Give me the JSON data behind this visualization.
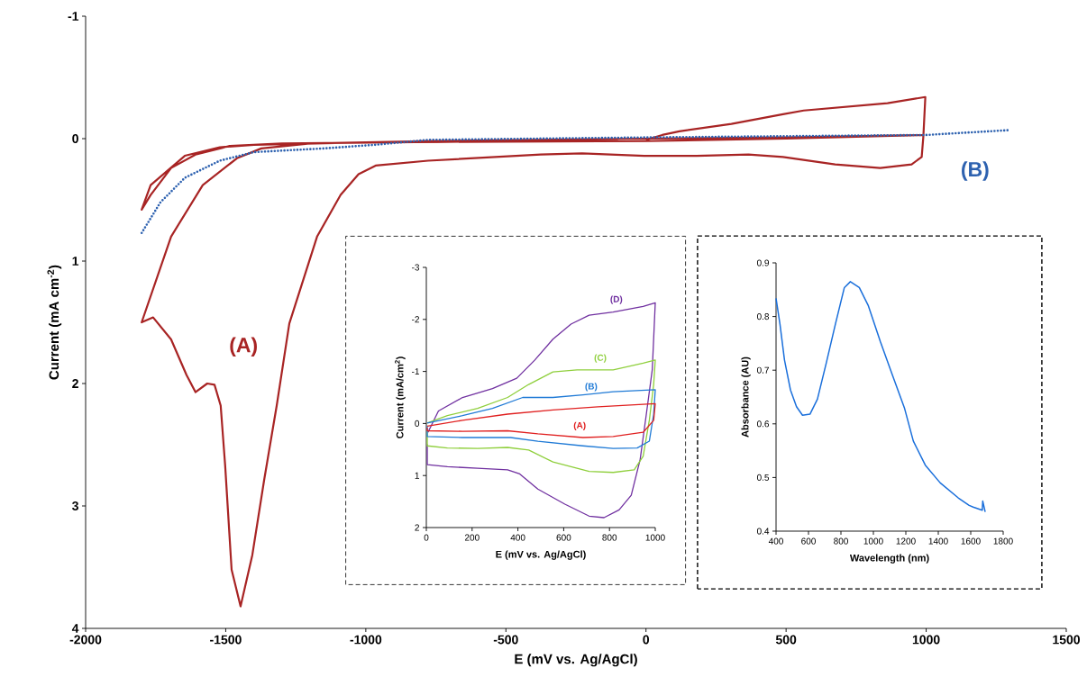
{
  "chart_data": [
    {
      "type": "line",
      "xlabel": "E (mV vs. Ag/AgCl)",
      "ylabel": "Current (mA cm$^{-2}$)",
      "xlim": [
        -2000,
        1500
      ],
      "ylim": [
        4,
        -1
      ],
      "xticks": [
        -2000,
        -1500,
        -1000,
        -500,
        0,
        500,
        1000,
        1500
      ],
      "yticks": [
        -1,
        0,
        1,
        2,
        3,
        4
      ],
      "marker": "none",
      "series": [
        {
          "name": "(A)",
          "color": "#a82424",
          "x": [
            0,
            58,
            119,
            305,
            489,
            563,
            862,
            997,
            990,
            984,
            948,
            836,
            675,
            489,
            366,
            180,
            -6,
            -228,
            -376,
            -778,
            -965,
            -1026,
            -1090,
            -1174,
            -1273,
            -1318,
            -1363,
            -1405,
            -1447,
            -1479,
            -1502,
            -1518,
            -1540,
            -1566,
            -1608,
            -1640,
            -1695,
            -1759,
            -1800,
            -1695,
            -1582,
            -1460,
            -1373,
            -1200,
            -800,
            -400,
            0,
            500,
            990,
            500,
            0,
            -1000,
            -1399,
            -1521,
            -1646,
            -1768,
            -1800,
            -1768,
            -1695,
            -1608,
            -1485,
            -1300,
            -500,
            -100
          ],
          "values": [
            0.01,
            -0.03,
            -0.06,
            -0.12,
            -0.2,
            -0.23,
            -0.29,
            -0.34,
            -0.02,
            0.15,
            0.21,
            0.24,
            0.21,
            0.15,
            0.13,
            0.14,
            0.14,
            0.12,
            0.13,
            0.18,
            0.22,
            0.29,
            0.46,
            0.8,
            1.51,
            2.18,
            2.79,
            3.4,
            3.82,
            3.52,
            2.67,
            2.18,
            2.01,
            2.0,
            2.07,
            1.93,
            1.64,
            1.46,
            1.5,
            0.8,
            0.38,
            0.16,
            0.08,
            0.04,
            0.02,
            0.01,
            0.0,
            -0.01,
            -0.03,
            0.0,
            0.02,
            0.03,
            0.05,
            0.07,
            0.14,
            0.38,
            0.58,
            0.46,
            0.24,
            0.13,
            0.06,
            0.04,
            0.02,
            0.01
          ]
        },
        {
          "name": "(B)",
          "color": "#2e62b0",
          "line_style": "dotted",
          "x": [
            -1800,
            -1733,
            -1646,
            -1521,
            -1399,
            -1151,
            -965,
            -778,
            -400,
            0,
            500,
            1000,
            1300
          ],
          "values": [
            0.77,
            0.52,
            0.32,
            0.18,
            0.11,
            0.08,
            0.05,
            0.01,
            0.0,
            -0.01,
            -0.02,
            -0.03,
            -0.07
          ]
        }
      ]
    },
    {
      "type": "line",
      "xlabel": "E (mV vs. Ag/AgCl)",
      "ylabel": "Current (mA/cm$^{2}$)",
      "xlim": [
        0,
        1000
      ],
      "ylim": [
        2,
        -3
      ],
      "xticks": [
        0,
        200,
        400,
        600,
        800,
        1000
      ],
      "yticks": [
        -3,
        -2,
        -1,
        0,
        1,
        2
      ],
      "marker": "none",
      "series": [
        {
          "name": "(D)",
          "color": "#7030a0",
          "x": [
            7,
            53,
            158,
            289,
            395,
            474,
            553,
            632,
            711,
            816,
            947,
            1000,
            987,
            961,
            934,
            895,
            842,
            776,
            711,
            605,
            487,
            408,
            355,
            224,
            92,
            4,
            4
          ],
          "values": [
            0.17,
            -0.24,
            -0.5,
            -0.67,
            -0.87,
            -1.22,
            -1.62,
            -1.91,
            -2.08,
            -2.14,
            -2.25,
            -2.32,
            -1.04,
            -0.18,
            0.69,
            1.38,
            1.66,
            1.81,
            1.78,
            1.55,
            1.26,
            0.97,
            0.89,
            0.86,
            0.83,
            0.79,
            0.4
          ]
        },
        {
          "name": "(C)",
          "color": "#8fcf3c",
          "x": [
            4,
            92,
            224,
            355,
            447,
            553,
            658,
            816,
            947,
            1000,
            993,
            974,
            947,
            908,
            816,
            711,
            553,
            447,
            355,
            224,
            92,
            4,
            4
          ],
          "values": [
            -0.01,
            -0.15,
            -0.29,
            -0.5,
            -0.75,
            -0.99,
            -1.03,
            -1.03,
            -1.16,
            -1.22,
            -0.75,
            -0.06,
            0.63,
            0.89,
            0.94,
            0.92,
            0.74,
            0.51,
            0.46,
            0.48,
            0.47,
            0.43,
            0.11
          ]
        },
        {
          "name": "(B)",
          "color": "#1f7ad6",
          "x": [
            4,
            158,
            289,
            421,
            553,
            684,
            816,
            1000,
            993,
            974,
            921,
            816,
            684,
            487,
            368,
            158,
            4,
            4
          ],
          "values": [
            -0.01,
            -0.15,
            -0.29,
            -0.5,
            -0.5,
            -0.55,
            -0.61,
            -0.65,
            -0.18,
            0.34,
            0.47,
            0.48,
            0.43,
            0.34,
            0.27,
            0.27,
            0.25,
            0.05
          ]
        },
        {
          "name": "(A)",
          "color": "#e02020",
          "x": [
            4,
            158,
            355,
            553,
            750,
            1000,
            993,
            947,
            816,
            684,
            487,
            355,
            158,
            4,
            4
          ],
          "values": [
            0.05,
            -0.06,
            -0.18,
            -0.26,
            -0.32,
            -0.38,
            -0.06,
            0.17,
            0.25,
            0.27,
            0.2,
            0.14,
            0.15,
            0.14,
            0.08
          ]
        }
      ]
    },
    {
      "type": "line",
      "xlabel": "Wavelength (nm)",
      "ylabel": "Absorbance (AU)",
      "xlim": [
        400,
        1800
      ],
      "ylim": [
        0.4,
        0.9
      ],
      "xticks": [
        400,
        600,
        800,
        1000,
        1200,
        1400,
        1600,
        1800
      ],
      "yticks": [
        0.4,
        0.5,
        0.6,
        0.7,
        0.8,
        0.9
      ],
      "marker": "none",
      "series": [
        {
          "color": "#1a6fdb",
          "x": [
            400,
            424,
            452,
            489,
            526,
            563,
            609,
            655,
            710,
            766,
            821,
            858,
            913,
            969,
            1043,
            1117,
            1191,
            1246,
            1320,
            1412,
            1523,
            1590,
            1615,
            1671,
            1674,
            1689
          ],
          "values": [
            0.834,
            0.786,
            0.719,
            0.663,
            0.632,
            0.616,
            0.618,
            0.646,
            0.714,
            0.786,
            0.854,
            0.865,
            0.854,
            0.82,
            0.753,
            0.691,
            0.63,
            0.568,
            0.523,
            0.49,
            0.462,
            0.448,
            0.445,
            0.439,
            0.456,
            0.436
          ]
        }
      ]
    }
  ]
}
